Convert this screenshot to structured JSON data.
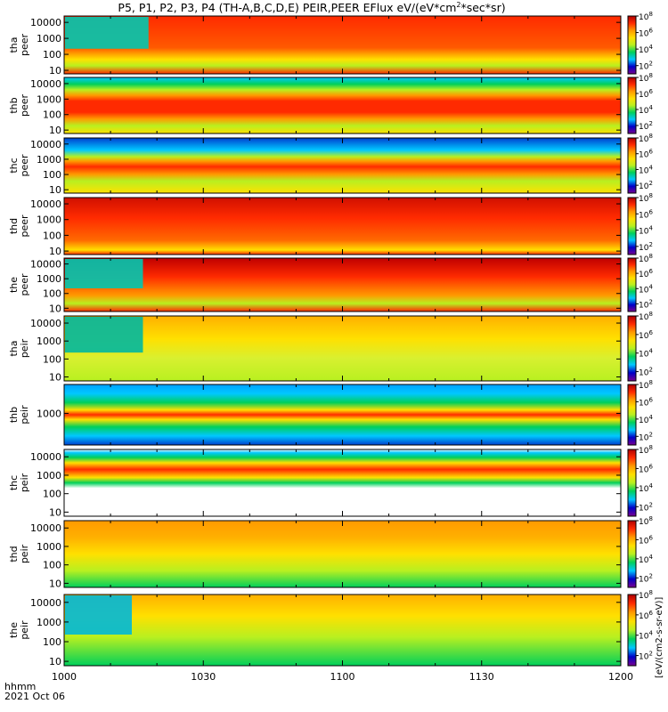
{
  "title": {
    "before": "P5, P1, P2, P3, P4 (TH-A,B,C,D,E) PEIR,PEER EFlux eV/(eV*cm",
    "sup": "2",
    "after": "*sec*sr)"
  },
  "footer": {
    "time_label": "hhmm",
    "date_label": "2021 Oct 06"
  },
  "colorbar": {
    "unit_label": "[eV/(cm2-s-sr-eV)]",
    "tick_labels": [
      "10",
      "10",
      "10",
      "10"
    ],
    "tick_exps": [
      "2",
      "4",
      "6",
      "8"
    ],
    "colors": [
      "#7a0090",
      "#0000c8",
      "#00c8ff",
      "#00d05a",
      "#b8f020",
      "#ffe000",
      "#ff9a00",
      "#ff2a00",
      "#b00000"
    ]
  },
  "chart_data": {
    "type": "heatmap",
    "title": "P5, P1, P2, P3, P4 (TH-A,B,C,D,E) PEIR,PEER EFlux eV/(eV*cm2*sec*sr)",
    "x": {
      "label": "hhmm",
      "range": [
        1000,
        1200
      ],
      "tick_labels": [
        "1000",
        "1030",
        "1100",
        "1130",
        "1200"
      ]
    },
    "x_ticks_minutes": [
      0,
      30,
      60,
      90,
      120
    ],
    "y_scale": "log",
    "colorbar_range_log10": [
      1,
      8
    ],
    "panels": [
      {
        "ylabel": "tha peer",
        "y_ticks": [
          "10000",
          "1000",
          "100",
          "10"
        ],
        "y_tick_values": [
          10000,
          1000,
          100,
          10
        ],
        "yrange": [
          6,
          25000
        ]
      },
      {
        "ylabel": "thb peer",
        "y_ticks": [
          "10000",
          "1000",
          "100",
          "10"
        ],
        "y_tick_values": [
          10000,
          1000,
          100,
          10
        ],
        "yrange": [
          6,
          25000
        ]
      },
      {
        "ylabel": "thc peer",
        "y_ticks": [
          "10000",
          "1000",
          "100",
          "10"
        ],
        "y_tick_values": [
          10000,
          1000,
          100,
          10
        ],
        "yrange": [
          6,
          25000
        ]
      },
      {
        "ylabel": "thd peer",
        "y_ticks": [
          "10000",
          "1000",
          "100",
          "10"
        ],
        "y_tick_values": [
          10000,
          1000,
          100,
          10
        ],
        "yrange": [
          6,
          25000
        ]
      },
      {
        "ylabel": "the peer",
        "y_ticks": [
          "10000",
          "1000",
          "100",
          "10"
        ],
        "y_tick_values": [
          10000,
          1000,
          100,
          10
        ],
        "yrange": [
          6,
          25000
        ]
      },
      {
        "ylabel": "tha peir",
        "y_ticks": [
          "10000",
          "1000",
          "100",
          "10"
        ],
        "y_tick_values": [
          10000,
          1000,
          100,
          10
        ],
        "yrange": [
          6,
          25000
        ]
      },
      {
        "ylabel": "thb peir",
        "y_ticks": [
          "1000"
        ],
        "y_tick_values": [
          1000
        ],
        "yrange": [
          300,
          3000
        ]
      },
      {
        "ylabel": "thc peir",
        "y_ticks": [
          "10000",
          "1000",
          "100",
          "10"
        ],
        "y_tick_values": [
          10000,
          1000,
          100,
          10
        ],
        "yrange": [
          6,
          25000
        ]
      },
      {
        "ylabel": "thd peir",
        "y_ticks": [
          "10000",
          "1000",
          "100",
          "10"
        ],
        "y_tick_values": [
          10000,
          1000,
          100,
          10
        ],
        "yrange": [
          6,
          25000
        ]
      },
      {
        "ylabel": "the peir",
        "y_ticks": [
          "10000",
          "1000",
          "100",
          "10"
        ],
        "y_tick_values": [
          10000,
          1000,
          100,
          10
        ],
        "yrange": [
          6,
          25000
        ]
      }
    ]
  }
}
